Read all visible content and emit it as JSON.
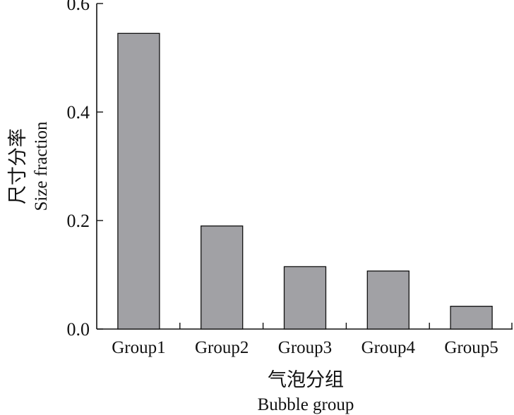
{
  "chart_data": {
    "type": "bar",
    "categories": [
      "Group1",
      "Group2",
      "Group3",
      "Group4",
      "Group5"
    ],
    "values": [
      0.545,
      0.19,
      0.115,
      0.107,
      0.042
    ],
    "ylim": [
      0,
      0.6
    ],
    "yticks": [
      0.0,
      0.2,
      0.4,
      0.6
    ],
    "ytick_labels": [
      "0.0",
      "0.2",
      "0.4",
      "0.6"
    ],
    "ylabel_cn": "尺寸分率",
    "ylabel_en": "Size fraction",
    "xlabel_cn": "气泡分组",
    "xlabel_en": "Bubble group",
    "bar_color": "#a1a1a5",
    "edge_color": "#111111",
    "grid": false
  }
}
